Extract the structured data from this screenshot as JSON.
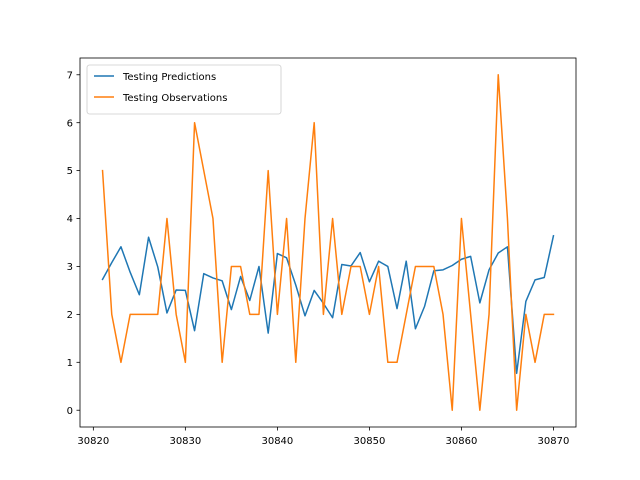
{
  "chart_data": {
    "type": "line",
    "title": "",
    "xlabel": "",
    "ylabel": "",
    "xlim": [
      30818.55,
      30872.45
    ],
    "ylim": [
      -0.35,
      7.35
    ],
    "x_ticks": [
      30820,
      30830,
      30840,
      30850,
      30860,
      30870
    ],
    "y_ticks": [
      0,
      1,
      2,
      3,
      4,
      5,
      6,
      7
    ],
    "grid": false,
    "legend_position": "upper-left",
    "x": [
      30821,
      30822,
      30823,
      30824,
      30825,
      30826,
      30827,
      30828,
      30829,
      30830,
      30831,
      30832,
      30833,
      30834,
      30835,
      30836,
      30837,
      30838,
      30839,
      30840,
      30841,
      30842,
      30843,
      30844,
      30845,
      30846,
      30847,
      30848,
      30849,
      30850,
      30851,
      30852,
      30853,
      30854,
      30855,
      30856,
      30857,
      30858,
      30859,
      30860,
      30861,
      30862,
      30863,
      30864,
      30865,
      30866,
      30867,
      30868,
      30869,
      30870
    ],
    "series": [
      {
        "name": "Testing Predictions",
        "color": "#1f77b4",
        "values": [
          2.73,
          3.08,
          3.41,
          2.88,
          2.41,
          3.61,
          2.99,
          2.03,
          2.51,
          2.5,
          1.66,
          2.85,
          2.76,
          2.7,
          2.1,
          2.79,
          2.29,
          3.0,
          1.61,
          3.27,
          3.18,
          2.61,
          1.97,
          2.5,
          2.23,
          1.93,
          3.04,
          3.01,
          3.29,
          2.68,
          3.11,
          3.0,
          2.12,
          3.11,
          1.7,
          2.17,
          2.91,
          2.93,
          3.02,
          3.15,
          3.21,
          2.24,
          2.93,
          3.28,
          3.41,
          0.77,
          2.27,
          2.72,
          2.77,
          3.64
        ]
      },
      {
        "name": "Testing Observations",
        "color": "#ff7f0e",
        "values": [
          5,
          2,
          1,
          2,
          2,
          2,
          2,
          4,
          2,
          1,
          6,
          5,
          4,
          1,
          3,
          3,
          2,
          2,
          5,
          2,
          4,
          1,
          4,
          6,
          2,
          4,
          2,
          3,
          3,
          2,
          3,
          1,
          1,
          2,
          3,
          3,
          3,
          2,
          0,
          4,
          2,
          0,
          2,
          7,
          4,
          0,
          2,
          1,
          2,
          2
        ]
      }
    ]
  }
}
